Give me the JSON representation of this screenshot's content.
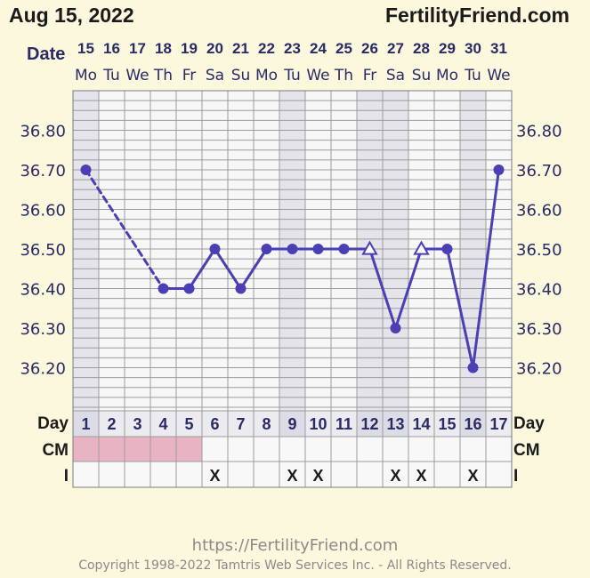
{
  "header": {
    "date": "Aug 15, 2022",
    "brand": "FertilityFriend.com",
    "date_label": "Date"
  },
  "footer": {
    "url": "https://FertilityFriend.com",
    "copyright": "Copyright 1998-2022 Tamtris Web Services Inc. - All Rights Reserved."
  },
  "row_labels": {
    "day": "Day",
    "cm": "CM",
    "i": "I"
  },
  "colors": {
    "line": "#4a3fb4",
    "grid": "#9c9c9c",
    "cm_fill": "#e8b4c4",
    "highlight": "#e4e4ea",
    "axis_text": "#2a2a66",
    "background": "#fbf8de"
  },
  "chart_data": {
    "type": "line",
    "dates": [
      "15",
      "16",
      "17",
      "18",
      "19",
      "20",
      "21",
      "22",
      "23",
      "24",
      "25",
      "26",
      "27",
      "28",
      "29",
      "30",
      "31"
    ],
    "weekdays": [
      "Mo",
      "Tu",
      "We",
      "Th",
      "Fr",
      "Sa",
      "Su",
      "Mo",
      "Tu",
      "We",
      "Th",
      "Fr",
      "Sa",
      "Su",
      "Mo",
      "Tu",
      "We"
    ],
    "cycle_days": [
      "1",
      "2",
      "3",
      "4",
      "5",
      "6",
      "7",
      "8",
      "9",
      "10",
      "11",
      "12",
      "13",
      "14",
      "15",
      "16",
      "17"
    ],
    "temperatures": [
      36.7,
      null,
      null,
      36.4,
      36.4,
      36.5,
      36.4,
      36.5,
      36.5,
      36.5,
      36.5,
      36.5,
      36.3,
      36.5,
      36.5,
      36.2,
      36.7
    ],
    "discarded_marker_days": [
      12,
      14
    ],
    "dashed_segments": [
      [
        1,
        4
      ]
    ],
    "y_ticks": [
      "36.80",
      "36.70",
      "36.60",
      "36.50",
      "36.40",
      "36.30",
      "36.20"
    ],
    "ylim": [
      36.1,
      36.9
    ],
    "cm_fertile_days": [
      1,
      2,
      3,
      4,
      5
    ],
    "i_marked_days": [
      6,
      9,
      10,
      13,
      14,
      16
    ],
    "i_mark": "X",
    "highlighted_days": [
      1,
      9,
      12,
      13,
      16
    ]
  }
}
